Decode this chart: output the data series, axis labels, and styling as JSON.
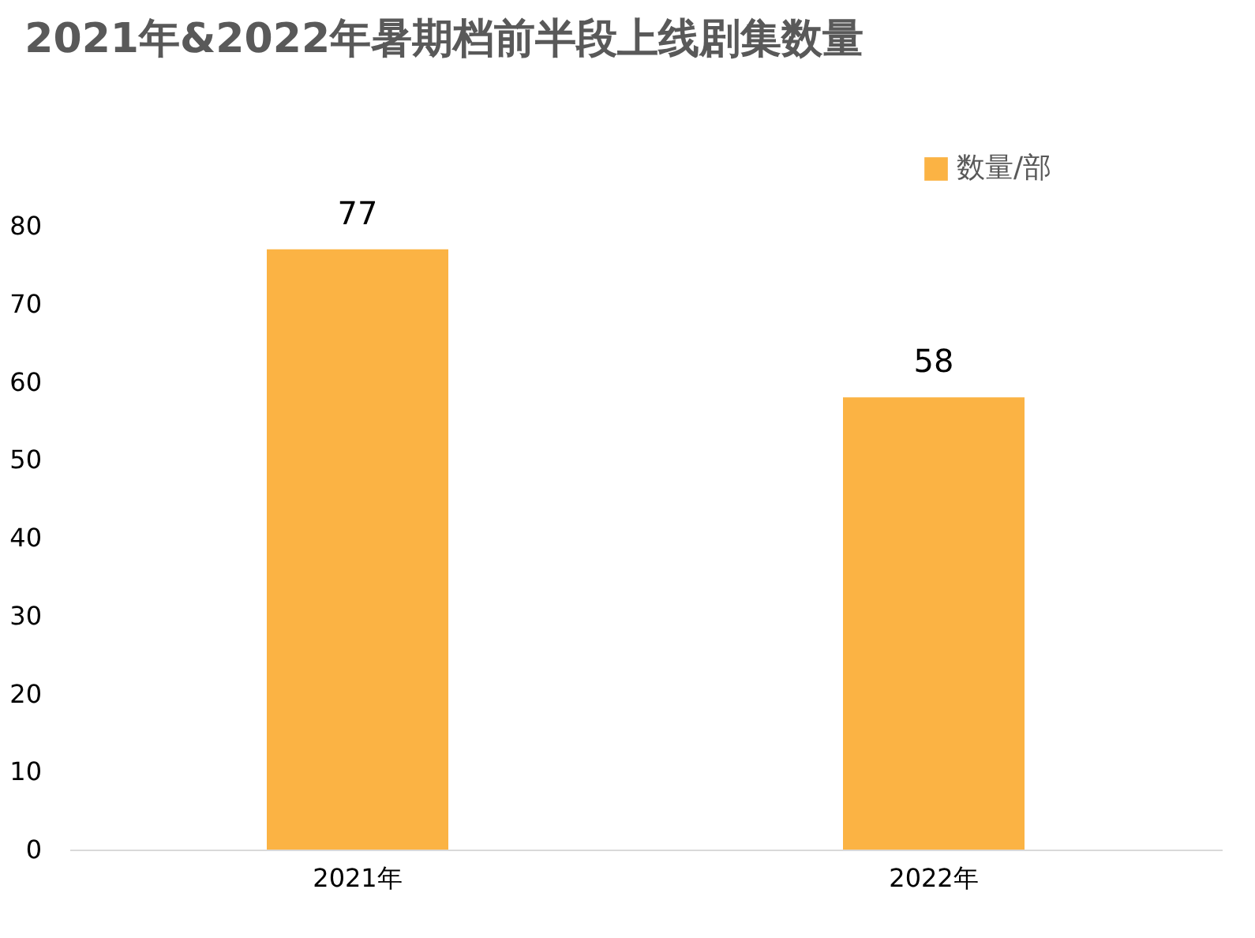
{
  "chart_data": {
    "type": "bar",
    "title": "2021年&2022年暑期档前半段上线剧集数量",
    "categories": [
      "2021年",
      "2022年"
    ],
    "series": [
      {
        "name": "数量/部",
        "color": "#fbb344",
        "values": [
          77,
          58
        ]
      }
    ],
    "ylim": [
      0,
      80
    ],
    "yticks": [
      0,
      10,
      20,
      30,
      40,
      50,
      60,
      70,
      80
    ],
    "grid": false,
    "legend": "top right",
    "data_labels": true
  }
}
